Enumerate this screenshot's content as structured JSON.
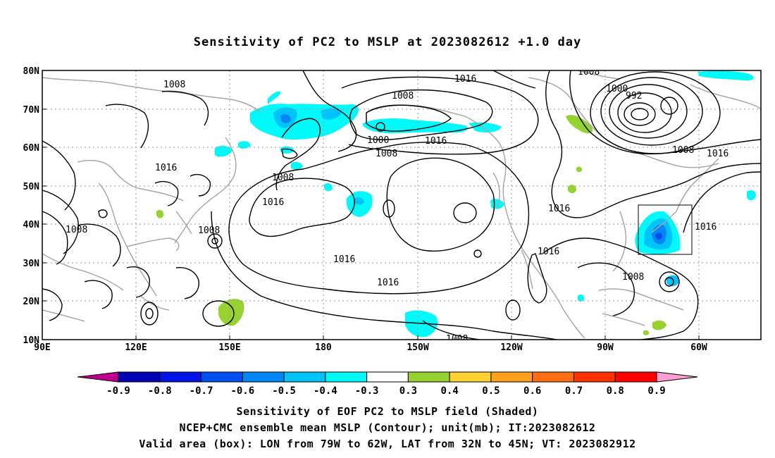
{
  "title": "Sensitivity of PC2 to MSLP at 2023082612 +1.0 day",
  "lat_labels": [
    "80N",
    "70N",
    "60N",
    "50N",
    "40N",
    "30N",
    "20N",
    "10N"
  ],
  "lon_labels": [
    "90E",
    "120E",
    "150E",
    "180",
    "150W",
    "120W",
    "90W",
    "60W"
  ],
  "colorbar": {
    "labels": [
      "-0.9",
      "-0.8",
      "-0.7",
      "-0.6",
      "-0.5",
      "-0.4",
      "-0.3",
      "0.3",
      "0.4",
      "0.5",
      "0.6",
      "0.7",
      "0.8",
      "0.9"
    ],
    "colors": [
      "#c0008c",
      "#0000b4",
      "#0014e6",
      "#0050f0",
      "#0087f5",
      "#00c3fa",
      "#00fafa",
      "#ffffff",
      "#96d232",
      "#ffd232",
      "#ffa01e",
      "#ff6e14",
      "#ff3200",
      "#ff0000",
      "#ffa0d2"
    ]
  },
  "contour_labels": [
    {
      "text": "1008"
    },
    {
      "text": "1016"
    },
    {
      "text": "1008"
    },
    {
      "text": "1000"
    },
    {
      "text": "992"
    },
    {
      "text": "1008"
    },
    {
      "text": "1016"
    },
    {
      "text": "1008"
    },
    {
      "text": "1000"
    },
    {
      "text": "1008"
    },
    {
      "text": "1016"
    },
    {
      "text": "1008"
    },
    {
      "text": "1016"
    },
    {
      "text": "1016"
    },
    {
      "text": "1008"
    },
    {
      "text": "1016"
    },
    {
      "text": "1016"
    },
    {
      "text": "1016"
    },
    {
      "text": "1016"
    },
    {
      "text": "1008"
    },
    {
      "text": "1008"
    },
    {
      "text": "1016"
    },
    {
      "text": "1008"
    }
  ],
  "captions": {
    "line1": "Sensitivity of EOF PC2 to MSLP field (Shaded)",
    "line2": "NCEP+CMC ensemble mean MSLP (Contour); unit(mb); IT:2023082612",
    "line3": "Valid area (box): LON from 79W to 62W, LAT from 32N to 45N; VT: 2023082912"
  },
  "colors": {
    "coast": "#a8a8a8",
    "contour": "#000000",
    "grid": "#9a9a9a",
    "positive": "#96d232",
    "negative_light": "#00fafa",
    "negative_mid": "#00c3fa",
    "negative_dark": "#0087f5"
  }
}
